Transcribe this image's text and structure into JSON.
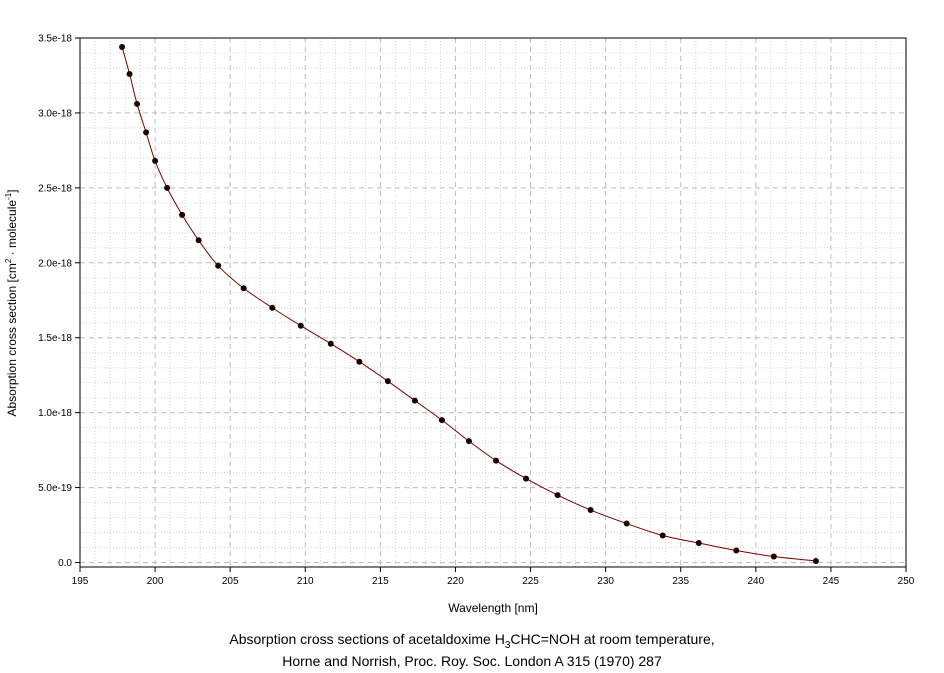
{
  "chart_data": {
    "type": "line",
    "title": "",
    "xlabel": "Wavelength [nm]",
    "ylabel_parts": {
      "prefix": "Absorption cross section [cm",
      "exp1": "2",
      "middle": " · molecule",
      "exp2": "-1",
      "suffix": "]"
    },
    "xlim": [
      195,
      250
    ],
    "ylim": [
      -3e-20,
      3.5e-18
    ],
    "x_ticks": [
      195,
      200,
      205,
      210,
      215,
      220,
      225,
      230,
      235,
      240,
      245,
      250
    ],
    "x_tick_labels": [
      "195",
      "200",
      "205",
      "210",
      "215",
      "220",
      "225",
      "230",
      "235",
      "240",
      "245",
      "250"
    ],
    "y_ticks": [
      0,
      5e-19,
      1e-18,
      1.5e-18,
      2e-18,
      2.5e-18,
      3e-18,
      3.5e-18
    ],
    "y_tick_labels": [
      "0.0",
      "5.0e-19",
      "1.0e-18",
      "1.5e-18",
      "2.0e-18",
      "2.5e-18",
      "3.0e-18",
      "3.5e-18"
    ],
    "grid": true,
    "line_color": "#7a0000",
    "marker_color": "#1a0000",
    "series": [
      {
        "x": [
          197.8,
          198.3,
          198.8,
          199.4,
          200.0,
          200.8,
          201.8,
          202.9,
          204.2,
          205.9,
          207.8,
          209.7,
          211.7,
          213.6,
          215.5,
          217.3,
          219.1,
          220.9,
          222.7,
          224.7,
          226.8,
          229.0,
          231.4,
          233.8,
          236.2,
          238.7,
          241.2,
          244.0
        ],
        "y": [
          3.44e-18,
          3.26e-18,
          3.06e-18,
          2.87e-18,
          2.68e-18,
          2.5e-18,
          2.32e-18,
          2.15e-18,
          1.98e-18,
          1.83e-18,
          1.7e-18,
          1.58e-18,
          1.46e-18,
          1.34e-18,
          1.21e-18,
          1.08e-18,
          9.5e-19,
          8.1e-19,
          6.8e-19,
          5.6e-19,
          4.5e-19,
          3.5e-19,
          2.6e-19,
          1.8e-19,
          1.3e-19,
          8e-20,
          4e-20,
          1e-20
        ]
      }
    ]
  },
  "caption": {
    "line1_pre": "Absorption cross sections of acetaldoxime H",
    "line1_sub": "3",
    "line1_post": "CHC=NOH at room temperature,",
    "line2": "Horne and Norrish, Proc. Roy. Soc. London A 315 (1970) 287"
  }
}
